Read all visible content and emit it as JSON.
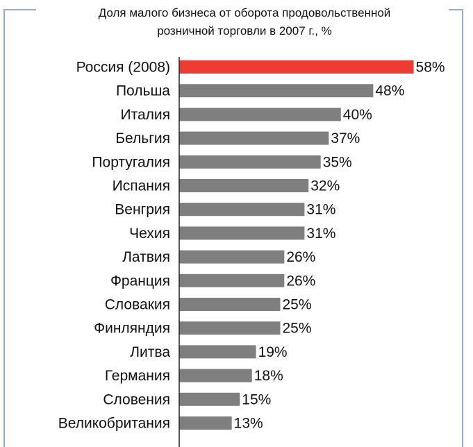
{
  "chart_data": {
    "type": "bar",
    "orientation": "horizontal",
    "title_lines": [
      "Доля малого бизнеса от оборота продовольственной",
      "розничной торговли в 2007 г., %"
    ],
    "xlabel": "",
    "ylabel": "",
    "xlim": [
      0,
      100
    ],
    "value_suffix": "%",
    "grid": false,
    "legend": "none",
    "colors": {
      "highlight": "#ee3b33",
      "bar": "#7f7f7f",
      "axis": "#222222",
      "frame": "#8eaed8"
    },
    "highlight_index": 0,
    "categories": [
      "Россия (2008)",
      "Польша",
      "Италия",
      "Бельгия",
      "Португалия",
      "Испания",
      "Венгрия",
      "Чехия",
      "Латвия",
      "Франция",
      "Словакия",
      "Финляндия",
      "Литва",
      "Германия",
      "Словения",
      "Великобритания"
    ],
    "values": [
      58,
      48,
      40,
      37,
      35,
      32,
      31,
      31,
      26,
      26,
      25,
      25,
      19,
      18,
      15,
      13
    ]
  }
}
